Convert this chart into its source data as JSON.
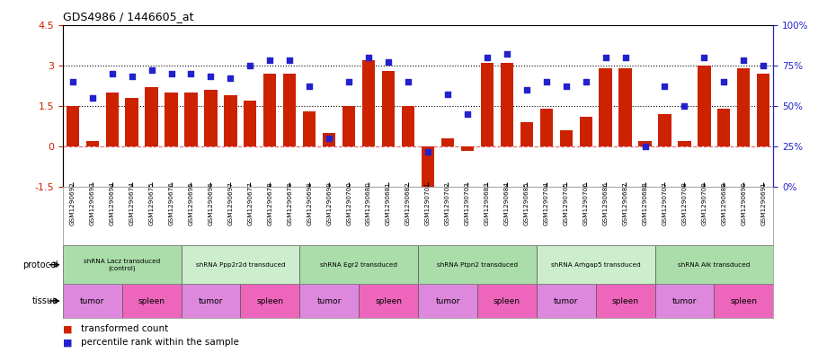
{
  "title": "GDS4986 / 1446605_at",
  "samples": [
    "GSM1290692",
    "GSM1290693",
    "GSM1290694",
    "GSM1290674",
    "GSM1290675",
    "GSM1290676",
    "GSM1290695",
    "GSM1290696",
    "GSM1290697",
    "GSM1290677",
    "GSM1290678",
    "GSM1290679",
    "GSM1290698",
    "GSM1290699",
    "GSM1290700",
    "GSM1290680",
    "GSM1290681",
    "GSM1290682",
    "GSM1290701",
    "GSM1290702",
    "GSM1290703",
    "GSM1290683",
    "GSM1290684",
    "GSM1290685",
    "GSM1290704",
    "GSM1290705",
    "GSM1290706",
    "GSM1290686",
    "GSM1290687",
    "GSM1290688",
    "GSM1290707",
    "GSM1290708",
    "GSM1290709",
    "GSM1290689",
    "GSM1290690",
    "GSM1290691"
  ],
  "bar_values": [
    1.5,
    0.2,
    2.0,
    1.8,
    2.2,
    2.0,
    2.0,
    2.1,
    1.9,
    1.7,
    2.7,
    2.7,
    1.3,
    0.5,
    1.5,
    3.2,
    2.8,
    1.5,
    -1.8,
    0.3,
    -0.15,
    3.1,
    3.1,
    0.9,
    1.4,
    0.6,
    1.1,
    2.9,
    2.9,
    0.2,
    1.2,
    0.2,
    3.0,
    1.4,
    2.9,
    2.7
  ],
  "dot_values": [
    65,
    55,
    70,
    68,
    72,
    70,
    70,
    68,
    67,
    75,
    78,
    78,
    62,
    30,
    65,
    80,
    77,
    65,
    22,
    57,
    45,
    80,
    82,
    60,
    65,
    62,
    65,
    80,
    80,
    25,
    62,
    50,
    80,
    65,
    78,
    75
  ],
  "protocols": [
    {
      "label": "shRNA Lacz transduced\n(control)",
      "start": 0,
      "end": 5,
      "color": "#aaddaa"
    },
    {
      "label": "shRNA Ppp2r2d transduced",
      "start": 6,
      "end": 11,
      "color": "#cceecc"
    },
    {
      "label": "shRNA Egr2 transduced",
      "start": 12,
      "end": 17,
      "color": "#aaddaa"
    },
    {
      "label": "shRNA Ptpn2 transduced",
      "start": 18,
      "end": 23,
      "color": "#aaddaa"
    },
    {
      "label": "shRNA Arhgap5 transduced",
      "start": 24,
      "end": 29,
      "color": "#cceecc"
    },
    {
      "label": "shRNA Alk transduced",
      "start": 30,
      "end": 35,
      "color": "#aaddaa"
    }
  ],
  "tissues": [
    {
      "label": "tumor",
      "start": 0,
      "end": 2,
      "color": "#dd88dd"
    },
    {
      "label": "spleen",
      "start": 3,
      "end": 5,
      "color": "#ee66bb"
    },
    {
      "label": "tumor",
      "start": 6,
      "end": 8,
      "color": "#dd88dd"
    },
    {
      "label": "spleen",
      "start": 9,
      "end": 11,
      "color": "#ee66bb"
    },
    {
      "label": "tumor",
      "start": 12,
      "end": 14,
      "color": "#dd88dd"
    },
    {
      "label": "spleen",
      "start": 15,
      "end": 17,
      "color": "#ee66bb"
    },
    {
      "label": "tumor",
      "start": 18,
      "end": 20,
      "color": "#dd88dd"
    },
    {
      "label": "spleen",
      "start": 21,
      "end": 23,
      "color": "#ee66bb"
    },
    {
      "label": "tumor",
      "start": 24,
      "end": 26,
      "color": "#dd88dd"
    },
    {
      "label": "spleen",
      "start": 27,
      "end": 29,
      "color": "#ee66bb"
    },
    {
      "label": "tumor",
      "start": 30,
      "end": 32,
      "color": "#dd88dd"
    },
    {
      "label": "spleen",
      "start": 33,
      "end": 35,
      "color": "#ee66bb"
    }
  ],
  "ylim": [
    -1.5,
    4.5
  ],
  "yticks": [
    -1.5,
    0.0,
    1.5,
    3.0,
    4.5
  ],
  "ytick_labels": [
    "-1.5",
    "0",
    "1.5",
    "3",
    "4.5"
  ],
  "y2lim": [
    0,
    100
  ],
  "y2ticks": [
    0,
    25,
    50,
    75,
    100
  ],
  "y2ticklabels": [
    "0%",
    "25%",
    "50%",
    "75%",
    "100%"
  ],
  "bar_color": "#cc2200",
  "dot_color": "#2222cc",
  "hline_y0_color": "#dd6666",
  "hline_dotted_vals": [
    1.5,
    3.0
  ],
  "bg_color": "#ffffff",
  "plot_bg_color": "#ffffff"
}
